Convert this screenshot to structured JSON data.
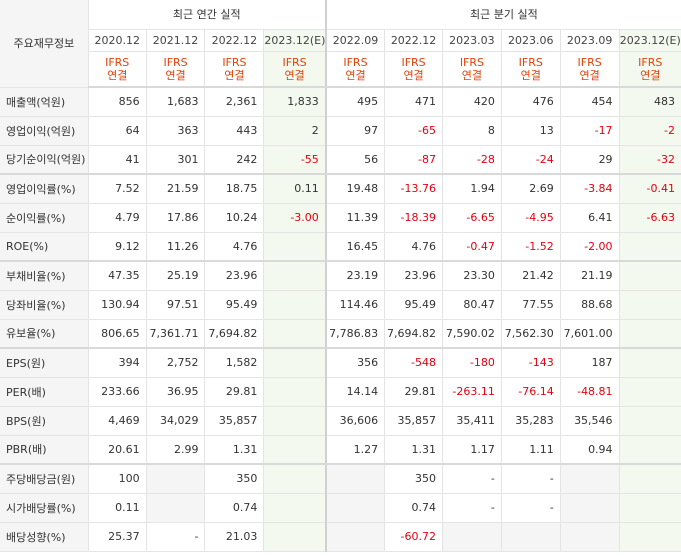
{
  "table": {
    "corner_label": "주요재무정보",
    "annual_group": "최근 연간 실적",
    "quarterly_group": "최근 분기 실적",
    "periods": [
      "2020.12",
      "2021.12",
      "2022.12",
      "2023.12(E)",
      "2022.09",
      "2022.12",
      "2023.03",
      "2023.06",
      "2023.09",
      "2023.12(E)"
    ],
    "ifrs_top": "IFRS",
    "ifrs_bottom": "연결",
    "rows": [
      {
        "label": "매출액(억원)",
        "values": [
          "856",
          "1,683",
          "2,361",
          "1,833",
          "495",
          "471",
          "420",
          "476",
          "454",
          "483"
        ]
      },
      {
        "label": "영업이익(억원)",
        "values": [
          "64",
          "363",
          "443",
          "2",
          "97",
          "-65",
          "8",
          "13",
          "-17",
          "-2"
        ]
      },
      {
        "label": "당기순이익(억원)",
        "values": [
          "41",
          "301",
          "242",
          "-55",
          "56",
          "-87",
          "-28",
          "-24",
          "29",
          "-32"
        ]
      },
      {
        "label": "영업이익률(%)",
        "values": [
          "7.52",
          "21.59",
          "18.75",
          "0.11",
          "19.48",
          "-13.76",
          "1.94",
          "2.69",
          "-3.84",
          "-0.41"
        ]
      },
      {
        "label": "순이익률(%)",
        "values": [
          "4.79",
          "17.86",
          "10.24",
          "-3.00",
          "11.39",
          "-18.39",
          "-6.65",
          "-4.95",
          "6.41",
          "-6.63"
        ]
      },
      {
        "label": "ROE(%)",
        "values": [
          "9.12",
          "11.26",
          "4.76",
          "",
          "16.45",
          "4.76",
          "-0.47",
          "-1.52",
          "-2.00",
          ""
        ]
      },
      {
        "label": "부채비율(%)",
        "values": [
          "47.35",
          "25.19",
          "23.96",
          "",
          "23.19",
          "23.96",
          "23.30",
          "21.42",
          "21.19",
          ""
        ]
      },
      {
        "label": "당좌비율(%)",
        "values": [
          "130.94",
          "97.51",
          "95.49",
          "",
          "114.46",
          "95.49",
          "80.47",
          "77.55",
          "88.68",
          ""
        ]
      },
      {
        "label": "유보율(%)",
        "values": [
          "806.65",
          "7,361.71",
          "7,694.82",
          "",
          "7,786.83",
          "7,694.82",
          "7,590.02",
          "7,562.30",
          "7,601.00",
          ""
        ]
      },
      {
        "label": "EPS(원)",
        "values": [
          "394",
          "2,752",
          "1,582",
          "",
          "356",
          "-548",
          "-180",
          "-143",
          "187",
          ""
        ]
      },
      {
        "label": "PER(배)",
        "values": [
          "233.66",
          "36.95",
          "29.81",
          "",
          "14.14",
          "29.81",
          "-263.11",
          "-76.14",
          "-48.81",
          ""
        ]
      },
      {
        "label": "BPS(원)",
        "values": [
          "4,469",
          "34,029",
          "35,857",
          "",
          "36,606",
          "35,857",
          "35,411",
          "35,283",
          "35,546",
          ""
        ]
      },
      {
        "label": "PBR(배)",
        "values": [
          "20.61",
          "2.99",
          "1.31",
          "",
          "1.27",
          "1.31",
          "1.17",
          "1.11",
          "0.94",
          ""
        ]
      },
      {
        "label": "주당배당금(원)",
        "values": [
          "100",
          "",
          "350",
          "",
          "",
          "350",
          "-",
          "-",
          "",
          ""
        ]
      },
      {
        "label": "시가배당률(%)",
        "values": [
          "0.11",
          "",
          "0.74",
          "",
          "",
          "0.74",
          "-",
          "-",
          "",
          ""
        ]
      },
      {
        "label": "배당성향(%)",
        "values": [
          "25.37",
          "-",
          "21.03",
          "",
          "",
          "-60.72",
          "",
          "",
          "",
          ""
        ]
      }
    ]
  },
  "colors": {
    "negative": "#e60012",
    "ifrs": "#e1420b",
    "estimate_bg": "#f3f9ee",
    "header_bg": "#f5f5f5"
  }
}
